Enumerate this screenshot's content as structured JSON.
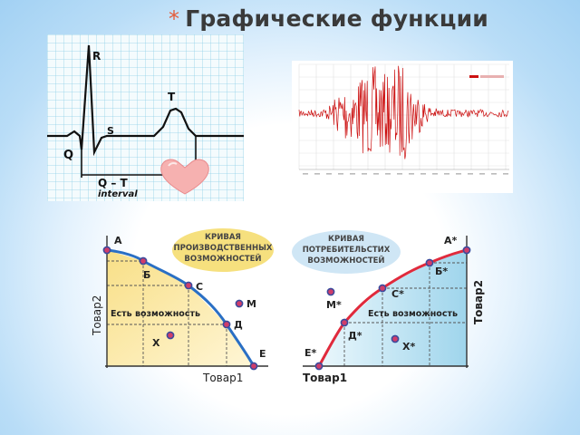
{
  "slide": {
    "bullet": "*",
    "title": "Графические функции"
  },
  "ecg": {
    "labels": {
      "R": "R",
      "T": "T",
      "S": "S",
      "Q": "Q",
      "qt": "Q – T",
      "interval": "interval"
    },
    "colors": {
      "grid": "#7fc9e6",
      "line": "#111111",
      "heart": "#f6b1b0"
    },
    "icon": "heart-icon"
  },
  "waveform": {
    "color": "#cc1111",
    "legend_color": "#cc1111"
  },
  "ppf": {
    "title_lines": [
      "КРИВАЯ",
      "ПРОИЗВОДСТВЕННЫХ",
      "ВОЗМОЖНОСТЕЙ"
    ],
    "points": [
      "А",
      "Б",
      "С",
      "Д",
      "Е"
    ],
    "extra_points": [
      "М",
      "Х"
    ],
    "region_label": "Есть возможность",
    "x_axis": "Товар1",
    "y_axis": "Товар2",
    "colors": {
      "fill": "#f7e49a",
      "curve": "#2a6fc4",
      "dot": "#d03d6a"
    }
  },
  "cpf": {
    "title_lines": [
      "КРИВАЯ",
      "ПОТРЕБИТЕЛЬСТИХ",
      "ВОЗМОЖНОСТЕЙ"
    ],
    "points": [
      "А*",
      "Б*",
      "С*",
      "Д*",
      "Е*"
    ],
    "extra_points": [
      "М*",
      "Х*"
    ],
    "region_label": "Есть возможность",
    "x_axis": "Товар1",
    "y_axis": "Товар2",
    "colors": {
      "fill": "#aedcef",
      "curve": "#e02a3c",
      "dot": "#d03d6a"
    }
  }
}
